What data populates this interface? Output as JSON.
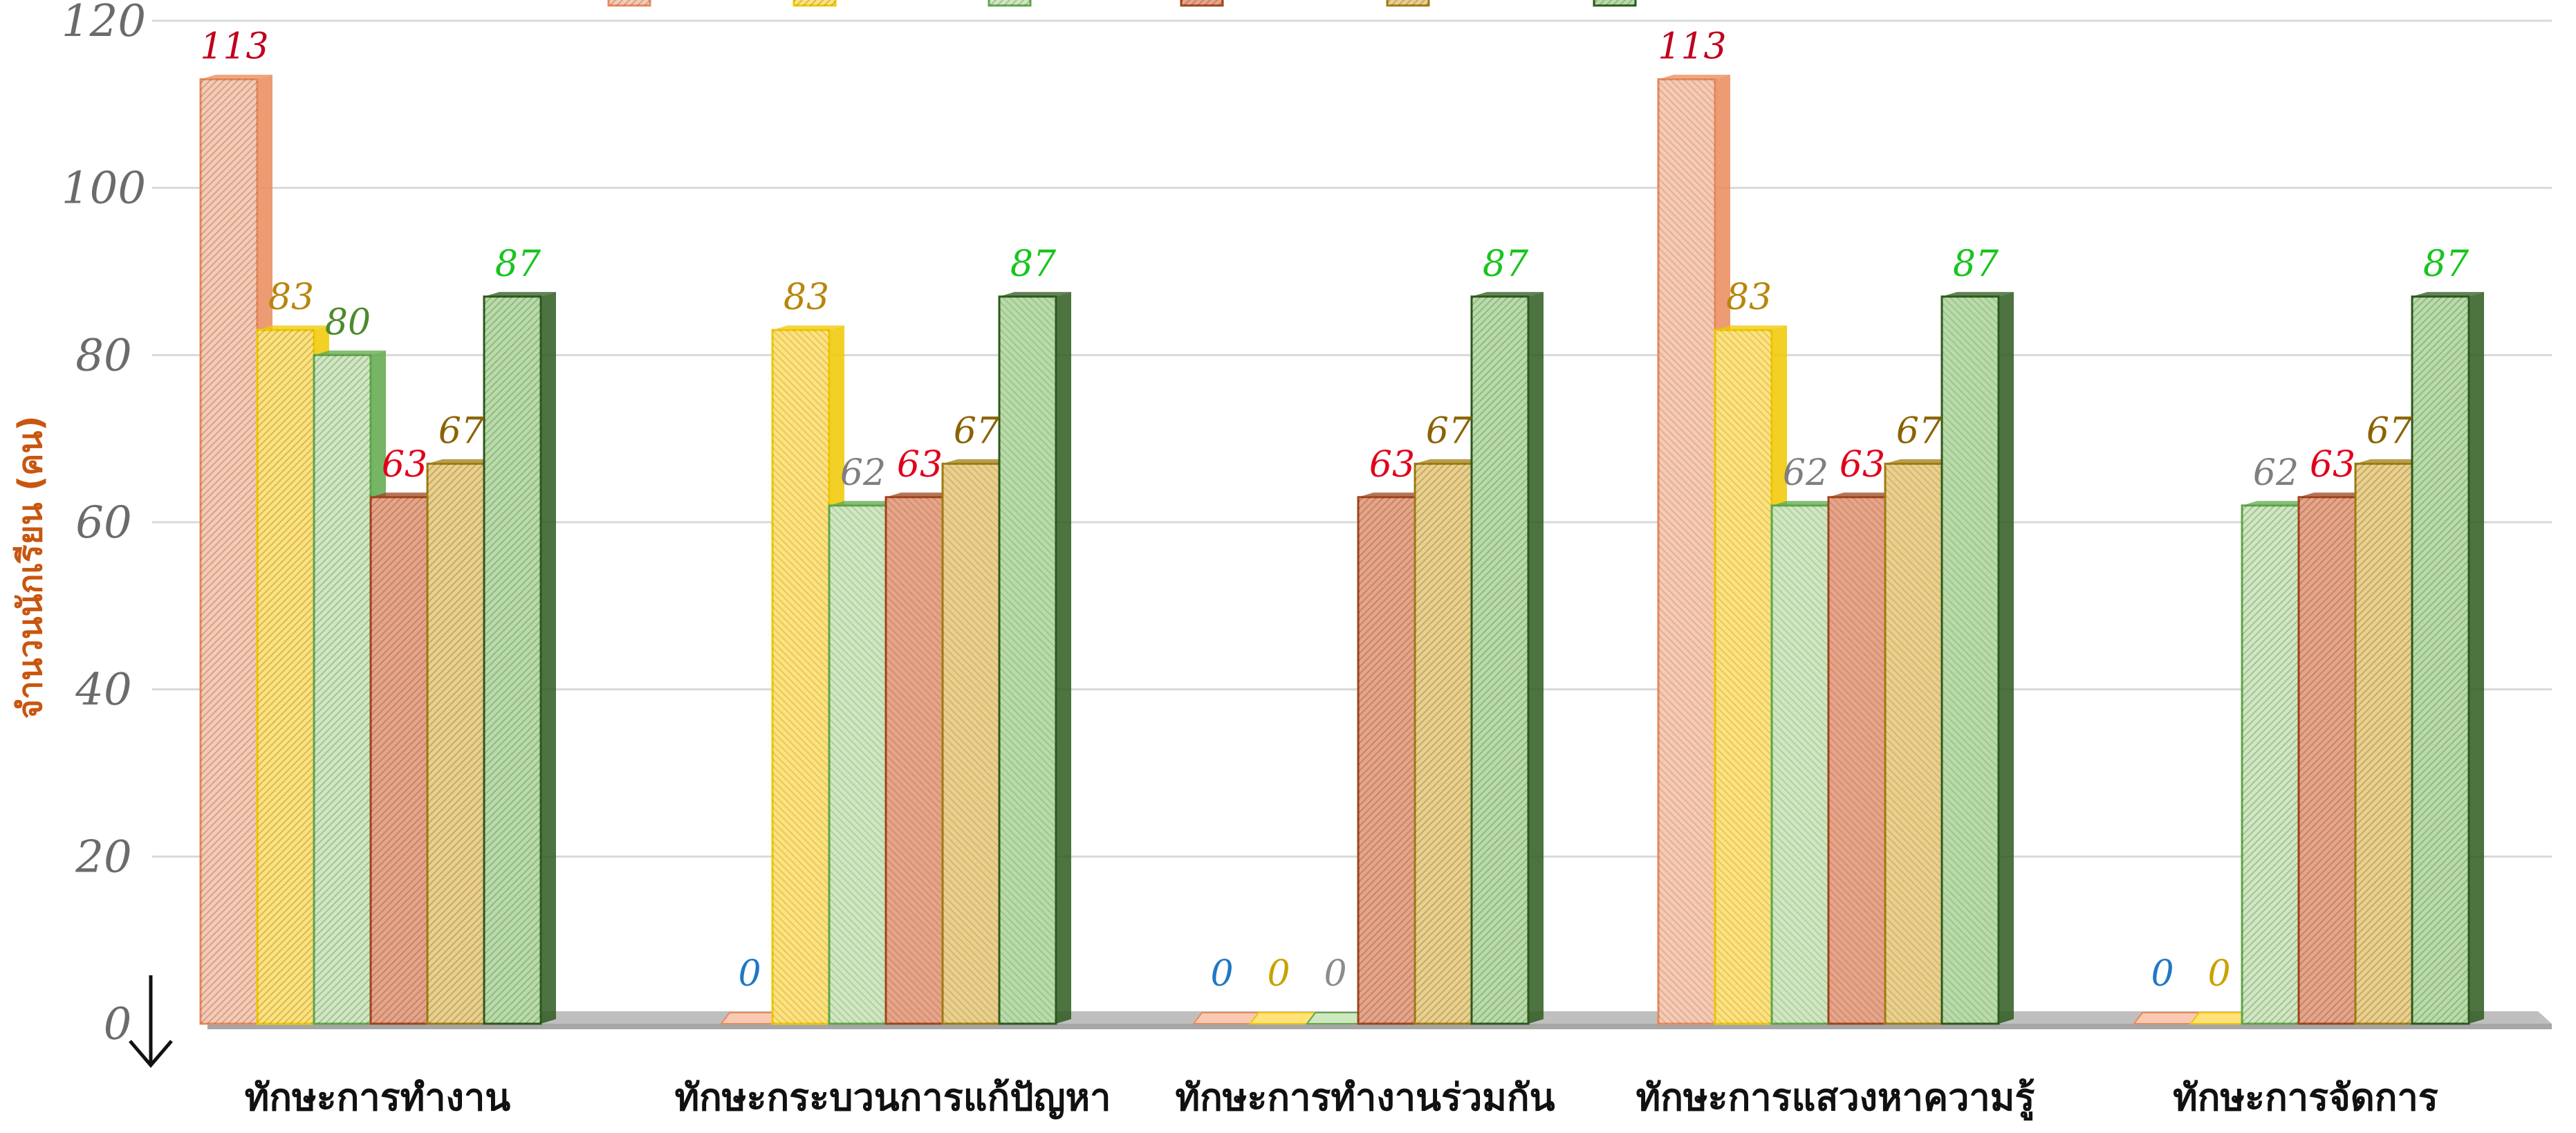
{
  "chart_data": {
    "type": "bar",
    "ylabel": "จำนวนนักเรียน (คน)",
    "ylim": [
      0,
      120
    ],
    "yticks": [
      "0",
      "20",
      "40",
      "60",
      "80",
      "100",
      "120"
    ],
    "grid": true,
    "legend_position": "top",
    "categories": [
      "ทักษะการทำงาน",
      "ทักษะกระบวนการแก้ปัญหา",
      "ทักษะการทำงานร่วมกัน",
      "ทักษะการแสวงหาความรู้",
      "ทักษะการจัดการ"
    ],
    "series": [
      {
        "values": [
          113,
          0,
          0,
          113,
          0
        ],
        "color": "#f8c9b3",
        "stroke": "#e98a5a",
        "label_color": "#c0001c",
        "zero_label_color": "#1f77c4"
      },
      {
        "values": [
          83,
          83,
          0,
          83,
          0
        ],
        "color": "#ffe27a",
        "stroke": "#f0c800",
        "label_color": "#b8860b",
        "zero_label_color": "#c9a100"
      },
      {
        "values": [
          80,
          62,
          0,
          62,
          62
        ],
        "color": "#cfe8bf",
        "stroke": "#5ea84a",
        "label_color": "#4c8a2e",
        "zero_label_color": "#8c8c8c"
      },
      {
        "values": [
          63,
          63,
          63,
          63,
          63
        ],
        "color": "#e8a487",
        "stroke": "#a0461e",
        "label_color": "#e0001c",
        "zero_label_color": "#e0001c"
      },
      {
        "values": [
          67,
          67,
          67,
          67,
          67
        ],
        "color": "#ead08a",
        "stroke": "#a07d12",
        "label_color": "#8a6300",
        "zero_label_color": "#8a6300"
      },
      {
        "values": [
          87,
          87,
          87,
          87,
          87
        ],
        "color": "#b8dca7",
        "stroke": "#2d5a1e",
        "label_color": "#19c41f",
        "zero_label_color": "#19c41f"
      }
    ],
    "value_label_overrides": [
      [
        null,
        null,
        "#7f7f7f",
        null,
        null,
        null
      ],
      [
        null,
        null,
        "#7f7f7f",
        null,
        null,
        null
      ],
      [
        null,
        null,
        "#7f7f7f",
        null,
        null,
        null
      ],
      [
        null,
        null,
        "#7f7f7f",
        null,
        null,
        null
      ],
      [
        null,
        null,
        "#7f7f7f",
        null,
        null,
        null
      ]
    ]
  },
  "colors": {
    "grid": "#d9d9d9",
    "floor": "#bfbfbf",
    "axis": "#222222"
  }
}
